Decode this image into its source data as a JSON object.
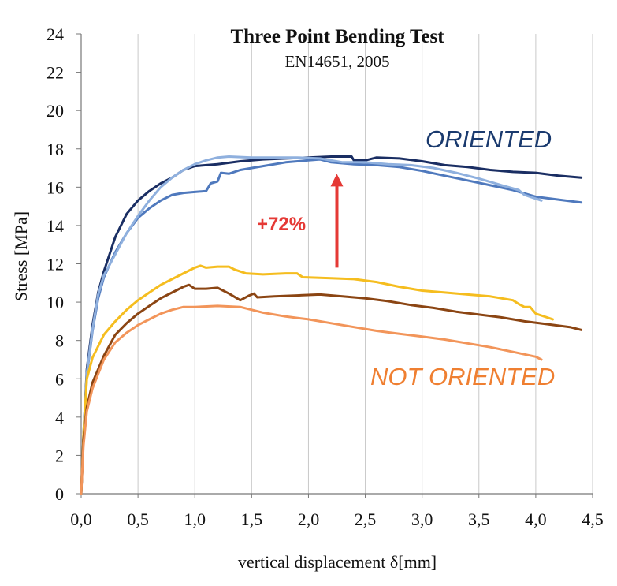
{
  "chart_data": {
    "type": "line",
    "title": "Three Point Bending Test",
    "subtitle": "EN14651, 2005",
    "xlabel": "vertical displacement δ[mm]",
    "ylabel": "Stress [MPa]",
    "xlim": [
      0,
      4.5
    ],
    "ylim": [
      0,
      24
    ],
    "x_ticks": [
      "0,0",
      "0,5",
      "1,0",
      "1,5",
      "2,0",
      "2,5",
      "3,0",
      "3,5",
      "4,0",
      "4,5"
    ],
    "y_ticks": [
      "0",
      "2",
      "4",
      "6",
      "8",
      "10",
      "12",
      "14",
      "16",
      "18",
      "20",
      "22",
      "24"
    ],
    "grid": "vertical",
    "annotations": {
      "oriented_label": "ORIENTED",
      "not_oriented_label": "NOT ORIENTED",
      "increase_label": "+72%",
      "arrow": {
        "x": 2.25,
        "y_from": 11.8,
        "y_to": 16.7
      }
    },
    "series": [
      {
        "group": "oriented",
        "color": "#1a2e63",
        "points": [
          [
            0,
            0
          ],
          [
            0.02,
            3
          ],
          [
            0.05,
            6.5
          ],
          [
            0.1,
            8.8
          ],
          [
            0.15,
            10.5
          ],
          [
            0.2,
            11.6
          ],
          [
            0.3,
            13.4
          ],
          [
            0.4,
            14.6
          ],
          [
            0.5,
            15.3
          ],
          [
            0.6,
            15.8
          ],
          [
            0.7,
            16.2
          ],
          [
            0.8,
            16.5
          ],
          [
            0.9,
            16.9
          ],
          [
            1.0,
            17.1
          ],
          [
            1.2,
            17.2
          ],
          [
            1.4,
            17.35
          ],
          [
            1.6,
            17.45
          ],
          [
            1.8,
            17.5
          ],
          [
            2.0,
            17.55
          ],
          [
            2.2,
            17.6
          ],
          [
            2.38,
            17.6
          ],
          [
            2.4,
            17.4
          ],
          [
            2.5,
            17.4
          ],
          [
            2.6,
            17.55
          ],
          [
            2.8,
            17.5
          ],
          [
            3.0,
            17.35
          ],
          [
            3.2,
            17.15
          ],
          [
            3.4,
            17.05
          ],
          [
            3.6,
            16.9
          ],
          [
            3.8,
            16.8
          ],
          [
            4.0,
            16.75
          ],
          [
            4.2,
            16.6
          ],
          [
            4.4,
            16.5
          ]
        ]
      },
      {
        "group": "oriented",
        "color": "#4f79bd",
        "points": [
          [
            0,
            0
          ],
          [
            0.02,
            2.8
          ],
          [
            0.05,
            6.2
          ],
          [
            0.1,
            8.5
          ],
          [
            0.15,
            10.2
          ],
          [
            0.2,
            11.3
          ],
          [
            0.3,
            12.6
          ],
          [
            0.4,
            13.6
          ],
          [
            0.5,
            14.4
          ],
          [
            0.6,
            14.9
          ],
          [
            0.7,
            15.3
          ],
          [
            0.8,
            15.6
          ],
          [
            0.9,
            15.7
          ],
          [
            1.0,
            15.75
          ],
          [
            1.1,
            15.8
          ],
          [
            1.14,
            16.2
          ],
          [
            1.2,
            16.3
          ],
          [
            1.23,
            16.75
          ],
          [
            1.3,
            16.7
          ],
          [
            1.4,
            16.9
          ],
          [
            1.6,
            17.1
          ],
          [
            1.8,
            17.3
          ],
          [
            2.0,
            17.4
          ],
          [
            2.1,
            17.45
          ],
          [
            2.2,
            17.3
          ],
          [
            2.4,
            17.2
          ],
          [
            2.6,
            17.15
          ],
          [
            2.8,
            17.05
          ],
          [
            3.0,
            16.85
          ],
          [
            3.2,
            16.6
          ],
          [
            3.4,
            16.35
          ],
          [
            3.6,
            16.1
          ],
          [
            3.8,
            15.85
          ],
          [
            4.0,
            15.5
          ],
          [
            4.2,
            15.35
          ],
          [
            4.4,
            15.2
          ]
        ]
      },
      {
        "group": "oriented",
        "color": "#8fb0de",
        "points": [
          [
            0,
            0
          ],
          [
            0.02,
            2.9
          ],
          [
            0.05,
            6.3
          ],
          [
            0.1,
            8.6
          ],
          [
            0.15,
            10.4
          ],
          [
            0.2,
            11.4
          ],
          [
            0.3,
            12.5
          ],
          [
            0.4,
            13.6
          ],
          [
            0.5,
            14.5
          ],
          [
            0.6,
            15.3
          ],
          [
            0.7,
            16.0
          ],
          [
            0.8,
            16.5
          ],
          [
            0.9,
            16.9
          ],
          [
            1.0,
            17.2
          ],
          [
            1.1,
            17.4
          ],
          [
            1.2,
            17.55
          ],
          [
            1.3,
            17.6
          ],
          [
            1.5,
            17.55
          ],
          [
            1.7,
            17.55
          ],
          [
            1.9,
            17.55
          ],
          [
            2.1,
            17.5
          ],
          [
            2.3,
            17.3
          ],
          [
            2.5,
            17.3
          ],
          [
            2.7,
            17.2
          ],
          [
            2.9,
            17.15
          ],
          [
            3.1,
            17.0
          ],
          [
            3.3,
            16.75
          ],
          [
            3.5,
            16.45
          ],
          [
            3.7,
            16.1
          ],
          [
            3.85,
            15.85
          ],
          [
            3.9,
            15.6
          ],
          [
            4.0,
            15.4
          ],
          [
            4.05,
            15.3
          ]
        ]
      },
      {
        "group": "not_oriented",
        "color": "#f5bd1f",
        "points": [
          [
            0,
            0
          ],
          [
            0.02,
            3
          ],
          [
            0.05,
            6
          ],
          [
            0.1,
            7.1
          ],
          [
            0.2,
            8.3
          ],
          [
            0.3,
            9.0
          ],
          [
            0.4,
            9.6
          ],
          [
            0.5,
            10.1
          ],
          [
            0.6,
            10.5
          ],
          [
            0.7,
            10.9
          ],
          [
            0.8,
            11.2
          ],
          [
            0.9,
            11.5
          ],
          [
            1.0,
            11.8
          ],
          [
            1.05,
            11.9
          ],
          [
            1.1,
            11.8
          ],
          [
            1.2,
            11.85
          ],
          [
            1.3,
            11.85
          ],
          [
            1.35,
            11.7
          ],
          [
            1.45,
            11.5
          ],
          [
            1.6,
            11.45
          ],
          [
            1.8,
            11.5
          ],
          [
            1.9,
            11.5
          ],
          [
            1.95,
            11.3
          ],
          [
            2.2,
            11.25
          ],
          [
            2.4,
            11.2
          ],
          [
            2.6,
            11.05
          ],
          [
            2.8,
            10.8
          ],
          [
            3.0,
            10.6
          ],
          [
            3.2,
            10.5
          ],
          [
            3.4,
            10.4
          ],
          [
            3.6,
            10.3
          ],
          [
            3.8,
            10.1
          ],
          [
            3.85,
            9.9
          ],
          [
            3.9,
            9.75
          ],
          [
            3.95,
            9.75
          ],
          [
            4.0,
            9.4
          ],
          [
            4.1,
            9.2
          ],
          [
            4.15,
            9.1
          ]
        ]
      },
      {
        "group": "not_oriented",
        "color": "#8b4513",
        "points": [
          [
            0,
            0
          ],
          [
            0.02,
            2.8
          ],
          [
            0.05,
            4.5
          ],
          [
            0.1,
            5.8
          ],
          [
            0.2,
            7.2
          ],
          [
            0.3,
            8.3
          ],
          [
            0.4,
            8.9
          ],
          [
            0.5,
            9.4
          ],
          [
            0.6,
            9.8
          ],
          [
            0.7,
            10.2
          ],
          [
            0.8,
            10.5
          ],
          [
            0.9,
            10.8
          ],
          [
            0.95,
            10.9
          ],
          [
            1.0,
            10.7
          ],
          [
            1.1,
            10.7
          ],
          [
            1.2,
            10.75
          ],
          [
            1.3,
            10.45
          ],
          [
            1.4,
            10.1
          ],
          [
            1.48,
            10.35
          ],
          [
            1.52,
            10.45
          ],
          [
            1.55,
            10.25
          ],
          [
            1.7,
            10.3
          ],
          [
            1.9,
            10.35
          ],
          [
            2.1,
            10.4
          ],
          [
            2.3,
            10.3
          ],
          [
            2.5,
            10.2
          ],
          [
            2.7,
            10.05
          ],
          [
            2.9,
            9.85
          ],
          [
            3.1,
            9.7
          ],
          [
            3.3,
            9.5
          ],
          [
            3.5,
            9.35
          ],
          [
            3.7,
            9.2
          ],
          [
            3.9,
            9.0
          ],
          [
            4.1,
            8.85
          ],
          [
            4.3,
            8.7
          ],
          [
            4.4,
            8.55
          ]
        ]
      },
      {
        "group": "not_oriented",
        "color": "#f2955a",
        "points": [
          [
            0,
            0
          ],
          [
            0.02,
            2.5
          ],
          [
            0.05,
            4.3
          ],
          [
            0.1,
            5.5
          ],
          [
            0.2,
            7.0
          ],
          [
            0.3,
            7.9
          ],
          [
            0.4,
            8.4
          ],
          [
            0.5,
            8.8
          ],
          [
            0.6,
            9.1
          ],
          [
            0.7,
            9.4
          ],
          [
            0.8,
            9.6
          ],
          [
            0.9,
            9.75
          ],
          [
            1.0,
            9.75
          ],
          [
            1.2,
            9.8
          ],
          [
            1.4,
            9.75
          ],
          [
            1.6,
            9.45
          ],
          [
            1.8,
            9.25
          ],
          [
            2.0,
            9.1
          ],
          [
            2.2,
            8.9
          ],
          [
            2.4,
            8.7
          ],
          [
            2.6,
            8.5
          ],
          [
            2.8,
            8.35
          ],
          [
            3.0,
            8.2
          ],
          [
            3.2,
            8.05
          ],
          [
            3.4,
            7.85
          ],
          [
            3.6,
            7.65
          ],
          [
            3.8,
            7.4
          ],
          [
            4.0,
            7.15
          ],
          [
            4.05,
            7.0
          ]
        ]
      }
    ]
  }
}
